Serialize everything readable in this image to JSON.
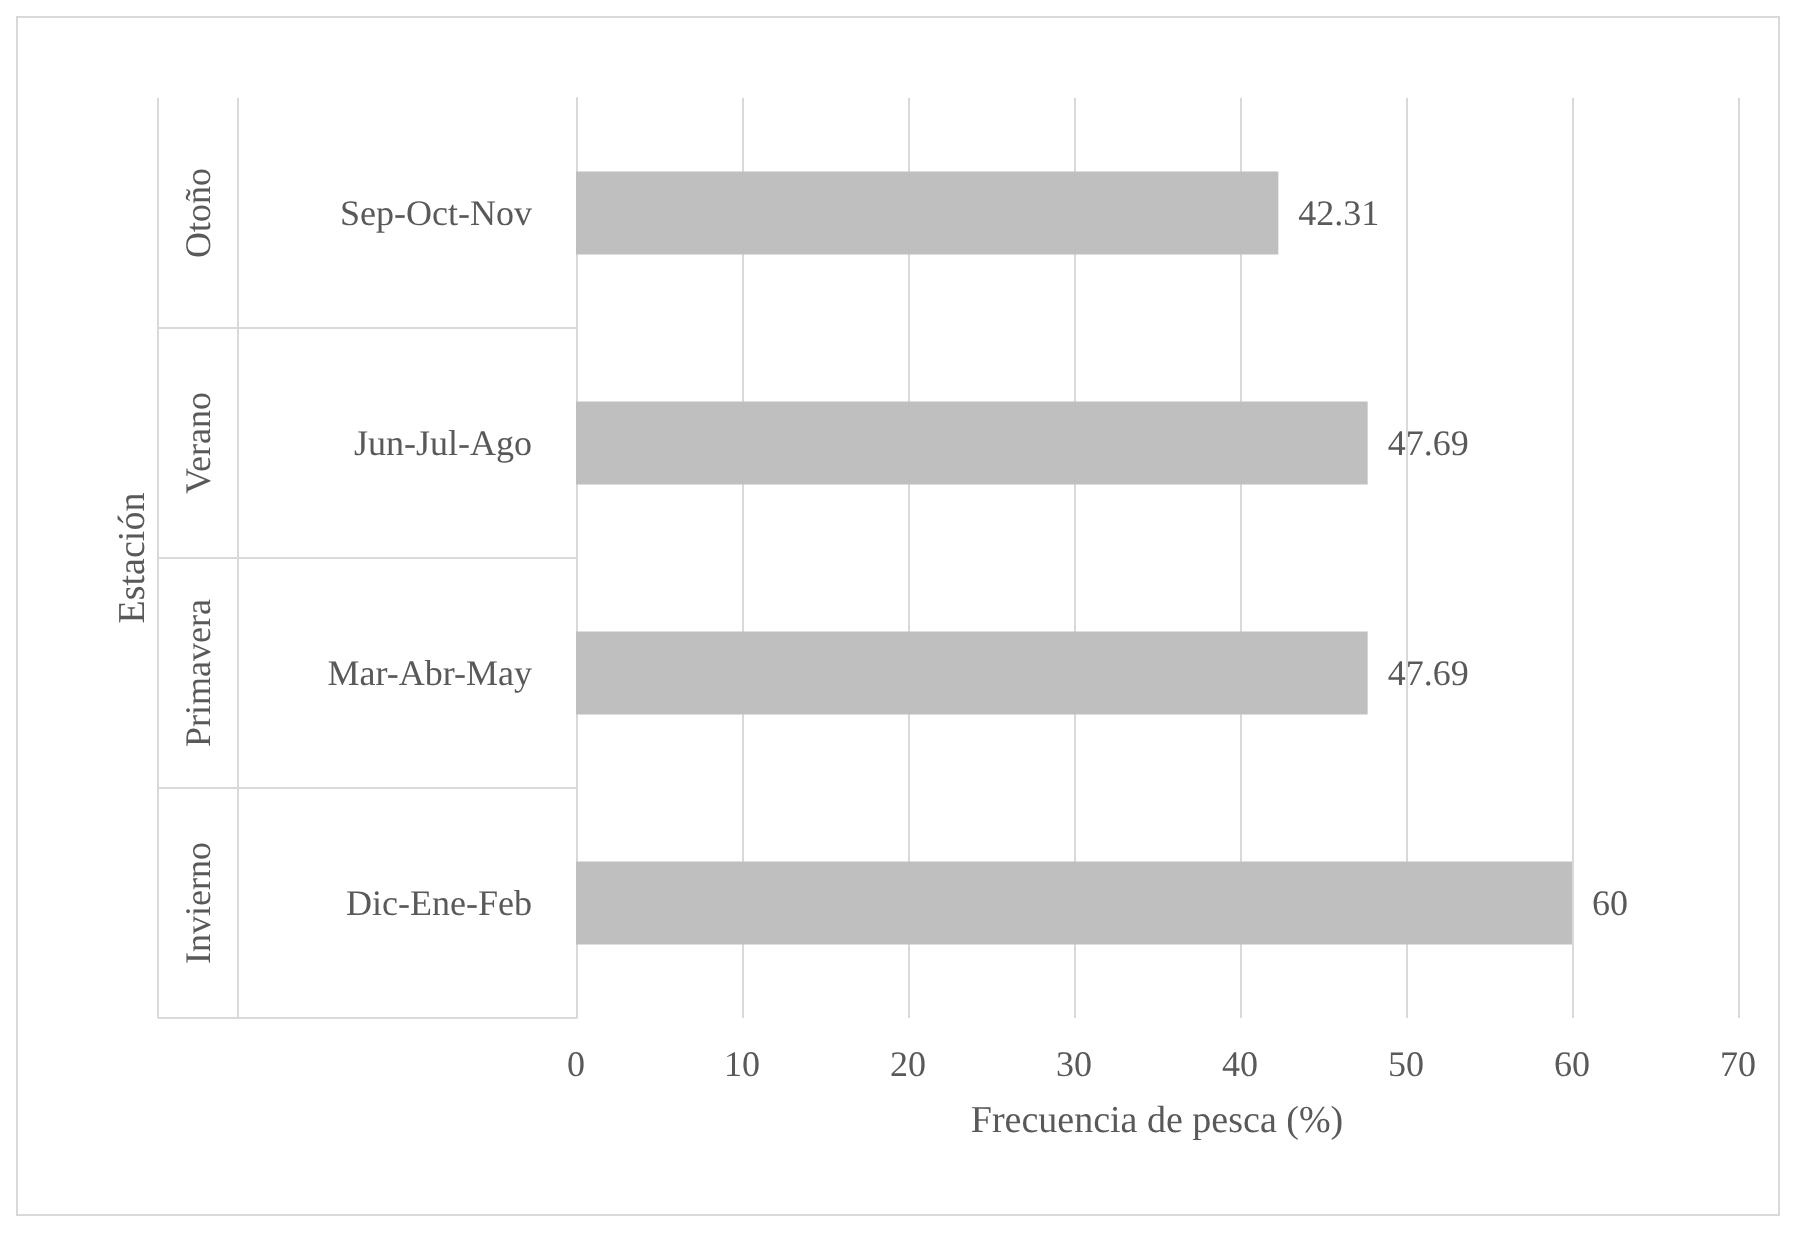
{
  "chart_data": {
    "type": "bar",
    "orientation": "horizontal",
    "xlabel": "Frecuencia de pesca (%)",
    "ylabel": "Estación",
    "categories": [
      "Sep-Oct-Nov",
      "Jun-Jul-Ago",
      "Mar-Abr-May",
      "Dic-Ene-Feb"
    ],
    "values": [
      42.31,
      47.69,
      47.69,
      60
    ],
    "color": "#bfbfbf",
    "xlim": [
      0,
      70
    ],
    "xticks": [
      0,
      10,
      20,
      30,
      40,
      50,
      60,
      70
    ],
    "grid": "x",
    "data_labels": true,
    "annotations": [
      "Otoño",
      "Verano",
      "Primavera",
      "Invierno"
    ]
  }
}
